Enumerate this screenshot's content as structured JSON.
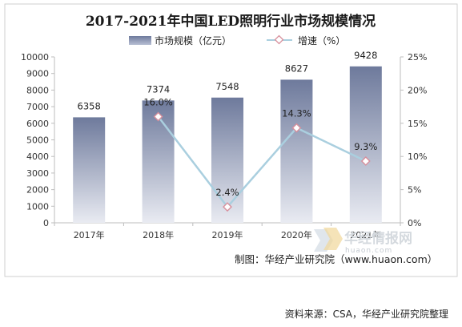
{
  "chart_data": {
    "type": "bar",
    "title": "2017-2021年中国LED照明行业市场规模情况",
    "categories": [
      "2017年",
      "2018年",
      "2019年",
      "2020年",
      "2021年"
    ],
    "series": [
      {
        "name": "市场规模（亿元）",
        "type": "bar",
        "axis": "left",
        "values": [
          6358,
          7374,
          7548,
          8627,
          9428
        ],
        "labels": [
          "6358",
          "7374",
          "7548",
          "8627",
          "9428"
        ]
      },
      {
        "name": "增速（%）",
        "type": "line",
        "axis": "right",
        "values": [
          null,
          16.0,
          2.4,
          14.3,
          9.3
        ],
        "labels": [
          "",
          "16.0%",
          "2.4%",
          "14.3%",
          "9.3%"
        ]
      }
    ],
    "left_axis": {
      "min": 0,
      "max": 10000,
      "step": 1000,
      "ticks": [
        "0",
        "1000",
        "2000",
        "3000",
        "4000",
        "5000",
        "6000",
        "7000",
        "8000",
        "9000",
        "10000"
      ]
    },
    "right_axis": {
      "min": 0,
      "max": 25,
      "step": 5,
      "ticks": [
        "0%",
        "5%",
        "10%",
        "15%",
        "20%",
        "25%"
      ]
    },
    "legend_position": "top",
    "grid": false
  },
  "credit": "制图：华经产业研究院（www.huaon.com）",
  "watermark": {
    "text": "华经情报网",
    "subtext": "huaon.com"
  },
  "source": "资料来源：CSA，华经产业研究院整理",
  "colors": {
    "bar_top": "#6e7a9c",
    "bar_bottom": "#e9ebf2",
    "line": "#aacfdf",
    "marker": "#d88f9c"
  }
}
